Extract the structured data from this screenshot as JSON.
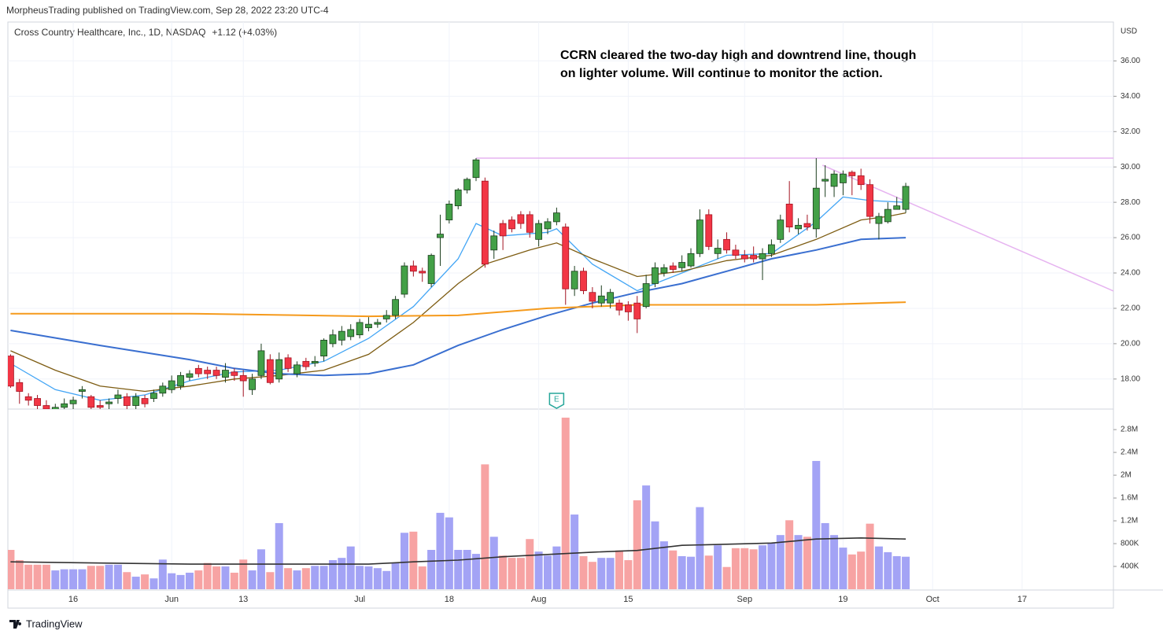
{
  "header": "MorpheusTrading published on TradingView.com, Sep 28, 2022 23:20 UTC-4",
  "footer": "TradingView",
  "chart_data": {
    "type": "candlestick",
    "title": "Cross Country Healthcare, Inc., 1D, NASDAQ",
    "change": "+1.12 (+4.03%)",
    "currency": "USD",
    "annotation": [
      "CCRN cleared the two-day high and downtrend line, though",
      "on lighter volume.  Will continue to monitor the action."
    ],
    "open": [
      19.3,
      17.8,
      17.0,
      16.9,
      16.5,
      16.2,
      16.4,
      16.6,
      17.3,
      17.0,
      16.5,
      16.6,
      16.9,
      17.0,
      16.5,
      16.9,
      16.9,
      17.2,
      17.4,
      17.6,
      18.1,
      18.6,
      18.5,
      18.5,
      18.1,
      18.4,
      18.2,
      17.4,
      18.2,
      19.1,
      18.0,
      19.2,
      18.3,
      19.0,
      18.9,
      19.3,
      20.0,
      20.2,
      20.4,
      20.5,
      20.9,
      21.1,
      21.4,
      21.6,
      22.8,
      24.4,
      24.1,
      23.4,
      26.0,
      27.0,
      27.8,
      28.7,
      29.4,
      29.2,
      25.3,
      26.8,
      27.0,
      27.3,
      27.3,
      25.9,
      26.5,
      26.9,
      26.6,
      23.1,
      24.1,
      22.9,
      22.3,
      22.3,
      22.3,
      22.2,
      22.3,
      22.1,
      23.4,
      24.0,
      24.4,
      24.3,
      24.4,
      25.1,
      27.3,
      25.1,
      25.9,
      25.3,
      25.0,
      25.0,
      24.8,
      25.1,
      25.9,
      27.9,
      26.5,
      26.8,
      26.5,
      29.2,
      28.9,
      29.1,
      29.7,
      29.5,
      29.0,
      26.8,
      26.9,
      27.6,
      27.6
    ],
    "high": [
      19.4,
      18.0,
      17.2,
      17.1,
      16.8,
      16.6,
      16.9,
      17.0,
      17.6,
      17.1,
      16.8,
      16.9,
      17.4,
      17.2,
      17.2,
      17.1,
      17.4,
      17.8,
      18.2,
      18.4,
      18.5,
      18.8,
      18.7,
      18.7,
      18.9,
      18.6,
      18.5,
      18.3,
      20.0,
      19.4,
      19.5,
      19.4,
      19.0,
      19.2,
      19.3,
      20.3,
      20.8,
      21.0,
      21.1,
      21.4,
      21.5,
      21.4,
      21.9,
      22.7,
      24.6,
      24.7,
      24.3,
      25.1,
      27.3,
      28.1,
      28.8,
      29.4,
      30.5,
      29.4,
      26.4,
      27.0,
      27.2,
      27.5,
      27.5,
      27.0,
      27.1,
      27.7,
      26.8,
      24.4,
      24.3,
      23.2,
      23.3,
      23.1,
      22.5,
      22.4,
      22.7,
      23.9,
      24.6,
      24.5,
      24.6,
      25.0,
      25.4,
      27.6,
      27.6,
      25.9,
      26.3,
      25.6,
      25.3,
      25.5,
      25.4,
      25.9,
      27.3,
      29.2,
      27.1,
      27.3,
      30.5,
      30.1,
      29.8,
      29.8,
      29.8,
      29.9,
      29.3,
      27.4,
      28.0,
      28.3,
      29.1
    ],
    "low": [
      17.5,
      16.6,
      16.5,
      16.3,
      16.0,
      15.9,
      16.1,
      16.2,
      16.9,
      16.2,
      16.2,
      16.3,
      16.6,
      16.3,
      16.3,
      16.4,
      16.7,
      17.0,
      17.2,
      17.4,
      17.9,
      18.1,
      18.0,
      18.0,
      17.8,
      17.9,
      17.0,
      17.1,
      18.0,
      17.7,
      17.8,
      18.4,
      18.1,
      18.5,
      18.7,
      19.0,
      19.8,
      19.9,
      20.2,
      20.3,
      20.7,
      20.9,
      21.2,
      21.4,
      22.6,
      23.8,
      23.5,
      23.2,
      24.4,
      26.8,
      27.6,
      28.5,
      29.2,
      24.3,
      24.8,
      25.3,
      26.3,
      26.5,
      26.0,
      25.5,
      26.2,
      26.7,
      22.2,
      22.7,
      22.8,
      22.0,
      22.1,
      22.0,
      21.6,
      21.3,
      20.6,
      22.0,
      23.2,
      23.8,
      24.0,
      24.1,
      24.3,
      24.9,
      25.3,
      24.8,
      25.1,
      24.8,
      24.6,
      24.6,
      23.6,
      24.9,
      25.7,
      26.3,
      26.2,
      26.4,
      26.0,
      28.3,
      28.3,
      28.4,
      28.4,
      28.7,
      26.8,
      25.9,
      26.8,
      27.6,
      27.4
    ],
    "close": [
      17.6,
      17.3,
      16.8,
      16.5,
      16.3,
      16.4,
      16.6,
      16.8,
      17.4,
      16.4,
      16.4,
      16.7,
      17.1,
      16.5,
      17.0,
      16.6,
      17.2,
      17.6,
      17.9,
      18.2,
      18.3,
      18.3,
      18.3,
      18.2,
      18.5,
      18.2,
      17.9,
      18.0,
      19.6,
      17.8,
      19.1,
      18.6,
      18.8,
      18.7,
      19.0,
      20.2,
      20.5,
      20.7,
      20.8,
      21.2,
      21.1,
      21.2,
      21.6,
      22.5,
      24.4,
      24.1,
      24.0,
      25.0,
      26.2,
      27.9,
      28.7,
      29.3,
      30.4,
      24.5,
      26.1,
      26.1,
      26.5,
      26.8,
      26.3,
      26.8,
      26.9,
      27.4,
      23.1,
      24.1,
      23.0,
      22.4,
      22.7,
      22.9,
      21.9,
      21.8,
      21.4,
      23.4,
      24.3,
      24.3,
      24.2,
      24.6,
      25.1,
      27.0,
      25.5,
      25.4,
      25.3,
      25.0,
      24.8,
      24.8,
      25.1,
      25.6,
      27.0,
      26.6,
      26.7,
      26.6,
      28.8,
      29.3,
      29.6,
      29.6,
      29.5,
      29.0,
      27.2,
      27.2,
      27.6,
      27.8,
      28.9
    ],
    "volume": [
      690000,
      510000,
      430000,
      430000,
      430000,
      330000,
      350000,
      350000,
      350000,
      410000,
      410000,
      430000,
      430000,
      300000,
      220000,
      260000,
      190000,
      520000,
      280000,
      250000,
      290000,
      330000,
      460000,
      400000,
      400000,
      290000,
      520000,
      330000,
      700000,
      300000,
      1160000,
      370000,
      330000,
      370000,
      410000,
      410000,
      510000,
      550000,
      750000,
      410000,
      400000,
      370000,
      320000,
      460000,
      990000,
      1010000,
      400000,
      690000,
      1340000,
      1260000,
      690000,
      690000,
      620000,
      2190000,
      920000,
      590000,
      550000,
      550000,
      880000,
      660000,
      590000,
      750000,
      3010000,
      1310000,
      580000,
      480000,
      550000,
      550000,
      680000,
      510000,
      1560000,
      1820000,
      1190000,
      840000,
      680000,
      580000,
      570000,
      1440000,
      590000,
      770000,
      390000,
      720000,
      720000,
      700000,
      770000,
      810000,
      950000,
      1210000,
      950000,
      920000,
      2250000,
      1160000,
      950000,
      730000,
      610000,
      660000,
      1150000,
      750000,
      650000,
      580000,
      570000
    ],
    "up_color": "#43a047",
    "down_color": "#f23645",
    "volume_up_color": "#a3a3f5",
    "volume_down_color": "#f7a3a3",
    "overlays": [
      {
        "color": "#42a5f5",
        "x": [
          0,
          5,
          10,
          15,
          20,
          25,
          30,
          35,
          40,
          45,
          50,
          52,
          55,
          60,
          61,
          65,
          70,
          75,
          80,
          85,
          90,
          93,
          96,
          100
        ],
        "values": [
          18.88,
          17.4,
          16.8,
          17.1,
          17.9,
          18.4,
          18.5,
          19.0,
          20.3,
          22.1,
          24.8,
          26.8,
          26.1,
          26.3,
          26.5,
          24.5,
          23.0,
          24.0,
          25.0,
          25.1,
          26.9,
          28.3,
          28.1,
          28.0
        ]
      },
      {
        "color": "#7d5c12",
        "x": [
          0,
          5,
          10,
          15,
          20,
          25,
          30,
          35,
          40,
          45,
          50,
          53,
          58,
          61,
          65,
          70,
          75,
          80,
          85,
          90,
          95,
          98,
          100
        ],
        "values": [
          19.6,
          18.5,
          17.6,
          17.3,
          17.6,
          18.0,
          18.2,
          18.5,
          19.4,
          21.2,
          23.4,
          24.5,
          25.3,
          25.7,
          24.8,
          23.8,
          24.1,
          24.7,
          25.0,
          25.9,
          27.0,
          27.2,
          27.4
        ]
      },
      {
        "color": "#3a6fd0",
        "x": [
          0,
          10,
          20,
          25,
          30,
          35,
          40,
          45,
          50,
          55,
          60,
          65,
          70,
          75,
          80,
          85,
          90,
          95,
          100
        ],
        "values": [
          20.75,
          19.9,
          19.1,
          18.6,
          18.3,
          18.2,
          18.3,
          18.8,
          19.9,
          20.8,
          21.6,
          22.3,
          22.9,
          23.4,
          24.1,
          24.8,
          25.3,
          25.9,
          26.0
        ]
      },
      {
        "color": "#f59a1c",
        "x": [
          0,
          20,
          40,
          50,
          60,
          70,
          80,
          90,
          100
        ],
        "values": [
          21.7,
          21.7,
          21.55,
          21.6,
          22.0,
          22.2,
          22.2,
          22.2,
          22.35
        ]
      }
    ],
    "volume_overlay": {
      "color": "#333333",
      "x": [
        0,
        10,
        20,
        30,
        40,
        45,
        50,
        55,
        60,
        65,
        70,
        75,
        80,
        85,
        90,
        95,
        100
      ],
      "values": [
        480000,
        460000,
        440000,
        440000,
        440000,
        480000,
        510000,
        570000,
        610000,
        650000,
        680000,
        770000,
        790000,
        810000,
        880000,
        900000,
        880000
      ]
    },
    "trendlines": [
      {
        "color": "#e6b3f0",
        "x": [
          52,
          123.2
        ],
        "values": [
          30.5,
          30.5
        ]
      },
      {
        "color": "#e6b3f0",
        "x": [
          90.7,
          123.2
        ],
        "values": [
          30.1,
          22.98
        ]
      }
    ],
    "events": [
      {
        "x": 61,
        "label": "E"
      }
    ],
    "xlim": [
      -0.3,
      123.2
    ],
    "xticks": [
      {
        "value": 7,
        "label": "16"
      },
      {
        "value": 18,
        "label": "Jun"
      },
      {
        "value": 26,
        "label": "13"
      },
      {
        "value": 39,
        "label": "Jul"
      },
      {
        "value": 49,
        "label": "18"
      },
      {
        "value": 59,
        "label": "Aug"
      },
      {
        "value": 69,
        "label": "15"
      },
      {
        "value": 82,
        "label": "Sep"
      },
      {
        "value": 93,
        "label": "19"
      },
      {
        "value": 103,
        "label": "Oct"
      },
      {
        "value": 113,
        "label": "17"
      }
    ],
    "ylim": [
      16.3,
      38.2
    ],
    "yticks": [
      {
        "value": 18,
        "label": "18.00"
      },
      {
        "value": 20,
        "label": "20.00"
      },
      {
        "value": 22,
        "label": "22.00"
      },
      {
        "value": 24,
        "label": "24.00"
      },
      {
        "value": 26,
        "label": "26.00"
      },
      {
        "value": 28,
        "label": "28.00"
      },
      {
        "value": 30,
        "label": "30.00"
      },
      {
        "value": 32,
        "label": "32.00"
      },
      {
        "value": 34,
        "label": "34.00"
      },
      {
        "value": 36,
        "label": "36.00"
      }
    ],
    "volume_ylim": [
      0,
      3160000
    ],
    "volume_yticks": [
      {
        "value": 400000,
        "label": "400K"
      },
      {
        "value": 800000,
        "label": "800K"
      },
      {
        "value": 1200000,
        "label": "1.2M"
      },
      {
        "value": 1600000,
        "label": "1.6M"
      },
      {
        "value": 2000000,
        "label": "2M"
      },
      {
        "value": 2400000,
        "label": "2.4M"
      },
      {
        "value": 2800000,
        "label": "2.8M"
      }
    ],
    "grid": true
  }
}
